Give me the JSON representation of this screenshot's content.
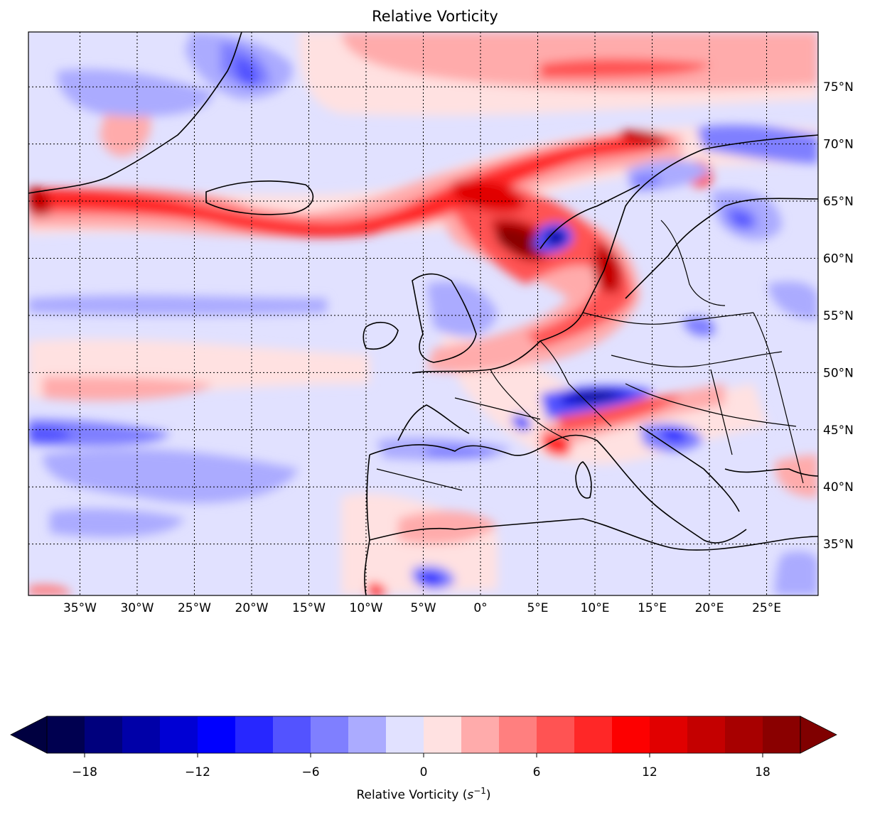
{
  "title": "Relative Vorticity",
  "map": {
    "projection": "cylindrical",
    "lon_range": [
      -39.5,
      29.5
    ],
    "lat_range": [
      30.5,
      79.8
    ],
    "meridians": [
      -35,
      -30,
      -25,
      -20,
      -15,
      -10,
      -5,
      0,
      5,
      10,
      15,
      20,
      25
    ],
    "parallels": [
      35,
      40,
      45,
      50,
      55,
      60,
      65,
      70,
      75
    ],
    "lon_labels": [
      "35°W",
      "30°W",
      "25°W",
      "20°W",
      "15°W",
      "10°W",
      "5°W",
      "0°",
      "5°E",
      "10°E",
      "15°E",
      "20°E",
      "25°E"
    ],
    "lat_labels": [
      "35°N",
      "40°N",
      "45°N",
      "50°N",
      "55°N",
      "60°N",
      "65°N",
      "70°N",
      "75°N"
    ],
    "grid_style": "dotted",
    "coastlines": true,
    "background_level": "-2 to 0"
  },
  "colorbar": {
    "orientation": "horizontal",
    "label": "Relative Vorticity ($s^{-1}$)",
    "label_text": "Relative Vorticity (",
    "label_sym": "s",
    "label_exp": "−1",
    "label_close": ")",
    "extend": "both",
    "levels": [
      -20,
      -18,
      -16,
      -14,
      -12,
      -10,
      -8,
      -6,
      -4,
      -2,
      0,
      2,
      4,
      6,
      8,
      10,
      12,
      14,
      16,
      18,
      20
    ],
    "ticks": [
      -18,
      -12,
      -6,
      0,
      6,
      12,
      18
    ],
    "tick_labels": [
      "−18",
      "−12",
      "−6",
      "0",
      "6",
      "12",
      "18"
    ],
    "colors": [
      "#000050",
      "#00007d",
      "#0000a8",
      "#0000d4",
      "#0000ff",
      "#2727ff",
      "#5353ff",
      "#7f7fff",
      "#ababff",
      "#e1e1ff",
      "#ffe1e1",
      "#ffabab",
      "#ff7f7f",
      "#ff5353",
      "#ff2727",
      "#fd0000",
      "#e10000",
      "#c40000",
      "#a70000",
      "#8a0000"
    ],
    "under_color": "#000040",
    "over_color": "#800000"
  }
}
